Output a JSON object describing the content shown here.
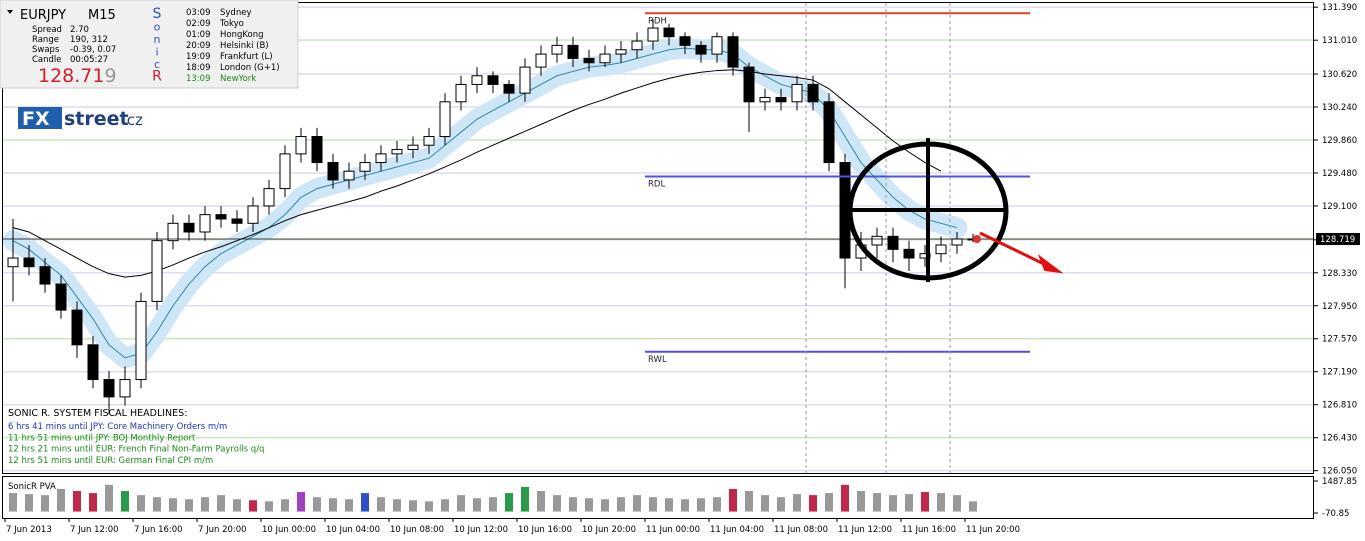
{
  "header": {
    "symbol": "EURJPY",
    "period": "M15",
    "spread_label": "Spread",
    "spread": "2.70",
    "range_label": "Range",
    "range": "190, 312",
    "swaps_label": "Swaps",
    "swaps": "-0.39, 0.07",
    "candle_label": "Candle",
    "candle": "00:05:27",
    "bid": "128.71",
    "bid_last": "9",
    "sonic": [
      "S",
      "o",
      "n",
      "i",
      "c",
      "R"
    ]
  },
  "clocks": [
    {
      "time": "03:09",
      "city": "Sydney"
    },
    {
      "time": "02:09",
      "city": "Tokyo"
    },
    {
      "time": "01:09",
      "city": "HongKong"
    },
    {
      "time": "20:09",
      "city": "Helsinki  (B)"
    },
    {
      "time": "19:09",
      "city": "Frankfurt  (L)"
    },
    {
      "time": "18:09",
      "city": "London  (G+1)"
    },
    {
      "time": "13:09",
      "city": "NewYork"
    }
  ],
  "logo": {
    "fx": "FX",
    "street": "street",
    "tld": ".cz"
  },
  "headlines": {
    "title": "SONIC R. SYSTEM FISCAL HEADLINES:",
    "items": [
      "6 hrs 41 mins until JPY: Core Machinery Orders m/m",
      "11 hrs 51 mins until JPY: BOJ Monthly Report",
      "12 hrs 21 mins until EUR: French Final Non-Farm Payrolls q/q",
      "12 hrs 51 mins until EUR: German Final CPI m/m"
    ]
  },
  "chart_data": {
    "type": "candlestick",
    "categories": [
      "7 Jun 2013",
      null,
      null,
      null,
      "7 Jun 12:00",
      null,
      null,
      null,
      "7 Jun 16:00",
      null,
      null,
      null,
      "7 Jun 20:00",
      null,
      null,
      null,
      "10 Jun 00:00",
      null,
      null,
      null,
      "10 Jun 04:00",
      null,
      null,
      null,
      "10 Jun 08:00",
      null,
      null,
      null,
      "10 Jun 12:00",
      null,
      null,
      null,
      "10 Jun 16:00",
      null,
      null,
      null,
      "10 Jun 20:00",
      null,
      null,
      null,
      "11 Jun 00:00",
      null,
      null,
      null,
      "11 Jun 04:00",
      null,
      null,
      null,
      "11 Jun 08:00",
      null,
      null,
      null,
      "11 Jun 12:00",
      null,
      null,
      null,
      "11 Jun 16:00",
      null,
      null,
      null,
      "11 Jun 20:00"
    ],
    "open": [
      128.4,
      128.5,
      128.4,
      128.2,
      127.9,
      127.5,
      127.1,
      126.9,
      127.1,
      128.0,
      128.7,
      128.9,
      128.8,
      129.0,
      128.95,
      128.9,
      129.1,
      129.3,
      129.7,
      129.9,
      129.6,
      129.4,
      129.5,
      129.6,
      129.7,
      129.75,
      129.8,
      129.9,
      130.3,
      130.5,
      130.6,
      130.5,
      130.4,
      130.7,
      130.85,
      130.95,
      130.8,
      130.75,
      130.85,
      130.9,
      131.0,
      131.15,
      131.05,
      130.95,
      130.85,
      131.05,
      130.7,
      130.3,
      130.35,
      130.3,
      130.5,
      130.3,
      129.6,
      128.5,
      128.65,
      128.75,
      128.6,
      128.5,
      128.55,
      128.65,
      128.72
    ],
    "high": [
      128.95,
      128.65,
      128.5,
      128.3,
      128.0,
      127.6,
      127.2,
      127.25,
      128.1,
      128.8,
      129.0,
      129.0,
      129.1,
      129.1,
      129.05,
      129.2,
      129.4,
      129.8,
      130.0,
      130.0,
      129.7,
      129.6,
      129.7,
      129.8,
      129.85,
      129.9,
      130.0,
      130.4,
      130.6,
      130.7,
      130.65,
      130.55,
      130.8,
      130.95,
      131.05,
      131.05,
      130.9,
      130.95,
      131.0,
      131.1,
      131.25,
      131.2,
      131.1,
      131.0,
      131.1,
      131.1,
      130.75,
      130.45,
      130.45,
      130.6,
      130.6,
      130.4,
      129.7,
      128.8,
      128.85,
      128.85,
      128.7,
      128.65,
      128.75,
      128.8,
      128.78
    ],
    "low": [
      128.0,
      128.3,
      128.1,
      127.8,
      127.35,
      127.0,
      126.7,
      126.8,
      127.0,
      127.9,
      128.6,
      128.7,
      128.7,
      128.85,
      128.8,
      128.8,
      129.0,
      129.2,
      129.6,
      129.5,
      129.3,
      129.3,
      129.4,
      129.5,
      129.6,
      129.65,
      129.7,
      129.8,
      130.2,
      130.4,
      130.4,
      130.3,
      130.3,
      130.6,
      130.75,
      130.7,
      130.65,
      130.7,
      130.75,
      130.8,
      130.9,
      130.95,
      130.85,
      130.75,
      130.75,
      130.6,
      129.95,
      130.2,
      130.2,
      130.2,
      130.2,
      129.5,
      128.15,
      128.35,
      128.5,
      128.45,
      128.35,
      128.4,
      128.45,
      128.55,
      128.68
    ],
    "close": [
      128.5,
      128.4,
      128.2,
      127.9,
      127.5,
      127.1,
      126.9,
      127.1,
      128.0,
      128.7,
      128.9,
      128.8,
      129.0,
      128.95,
      128.9,
      129.1,
      129.3,
      129.7,
      129.9,
      129.6,
      129.4,
      129.5,
      129.6,
      129.7,
      129.75,
      129.8,
      129.9,
      130.3,
      130.5,
      130.6,
      130.5,
      130.4,
      130.7,
      130.85,
      130.95,
      130.8,
      130.75,
      130.85,
      130.9,
      131.0,
      131.15,
      131.05,
      130.95,
      130.85,
      131.05,
      130.7,
      130.3,
      130.35,
      130.3,
      130.5,
      130.3,
      129.6,
      128.5,
      128.65,
      128.75,
      128.6,
      128.5,
      128.55,
      128.65,
      128.72,
      128.719
    ],
    "series": [
      {
        "color": "#2a8aa8",
        "band_color": "#cfe6f7",
        "band": 0.12,
        "values": [
          128.7,
          128.6,
          128.45,
          128.3,
          128.05,
          127.8,
          127.5,
          127.35,
          127.4,
          127.65,
          127.95,
          128.2,
          128.4,
          128.55,
          128.65,
          128.75,
          128.85,
          129.0,
          129.2,
          129.3,
          129.35,
          129.4,
          129.45,
          129.5,
          129.55,
          129.6,
          129.65,
          129.8,
          129.95,
          130.1,
          130.2,
          130.3,
          130.4,
          130.5,
          130.6,
          130.65,
          130.7,
          130.72,
          130.75,
          130.8,
          130.85,
          130.9,
          130.92,
          130.9,
          130.9,
          130.85,
          130.7,
          130.6,
          130.5,
          130.45,
          130.4,
          130.2,
          129.9,
          129.6,
          129.4,
          129.2,
          129.05,
          128.95,
          128.9,
          128.85,
          null
        ]
      },
      {
        "color": "#000000",
        "values": [
          128.85,
          128.8,
          128.7,
          128.6,
          128.5,
          128.4,
          128.32,
          128.28,
          128.3,
          128.35,
          128.42,
          128.5,
          128.57,
          128.63,
          128.7,
          128.77,
          128.85,
          128.93,
          129.0,
          129.05,
          129.1,
          129.15,
          129.2,
          129.27,
          129.33,
          129.4,
          129.47,
          129.55,
          129.63,
          129.72,
          129.8,
          129.88,
          129.96,
          130.04,
          130.12,
          130.2,
          130.27,
          130.33,
          130.4,
          130.46,
          130.52,
          130.57,
          130.61,
          130.64,
          130.66,
          130.67,
          130.65,
          130.62,
          130.6,
          130.58,
          130.55,
          130.45,
          130.3,
          130.15,
          130.0,
          129.85,
          129.72,
          129.6,
          129.5,
          null,
          null
        ]
      }
    ],
    "levels": [
      {
        "label": "RDH",
        "value": 131.32,
        "color": "#e0402a"
      },
      {
        "label": "RDL",
        "value": 129.44,
        "color": "#5050d8"
      },
      {
        "label": "RWL",
        "value": 127.42,
        "color": "#5050d8"
      }
    ],
    "current": {
      "value": 128.719,
      "label": "128.719"
    },
    "ylim": [
      126.0,
      131.45
    ],
    "yticks": [
      {
        "value": 131.39,
        "label": "131.390"
      },
      {
        "value": 131.01,
        "label": "131.010"
      },
      {
        "value": 130.62,
        "label": "130.620"
      },
      {
        "value": 130.24,
        "label": "130.240"
      },
      {
        "value": 129.86,
        "label": "129.860"
      },
      {
        "value": 129.48,
        "label": "129.480"
      },
      {
        "value": 129.1,
        "label": "129.100"
      },
      {
        "value": 128.71,
        "label": "128.710"
      },
      {
        "value": 128.33,
        "label": "128.330"
      },
      {
        "value": 127.95,
        "label": "127.950"
      },
      {
        "value": 127.57,
        "label": "127.570"
      },
      {
        "value": 127.19,
        "label": "127.190"
      },
      {
        "value": 126.81,
        "label": "126.810"
      },
      {
        "value": 126.43,
        "label": "126.430"
      },
      {
        "value": 126.05,
        "label": "126.050"
      }
    ],
    "grid": true,
    "volume": {
      "title": "SonicR PVA",
      "ylim": [
        -70.85,
        1487.85
      ],
      "yticks": [
        1487.85,
        -70.85
      ],
      "values": [
        900,
        850,
        800,
        1100,
        1000,
        900,
        1300,
        1000,
        800,
        700,
        650,
        600,
        700,
        800,
        600,
        550,
        500,
        600,
        950,
        700,
        650,
        600,
        900,
        700,
        600,
        550,
        500,
        600,
        800,
        650,
        700,
        900,
        1200,
        1000,
        800,
        700,
        650,
        600,
        700,
        800,
        700,
        650,
        600,
        650,
        700,
        1100,
        1000,
        800,
        700,
        850,
        800,
        900,
        1300,
        1000,
        900,
        800,
        850,
        950,
        900,
        800,
        500
      ],
      "colors": [
        "#999",
        "#999",
        "#999",
        "#999",
        "#c0284a",
        "#c0284a",
        "#999",
        "#2a9a4a",
        "#999",
        "#999",
        "#999",
        "#999",
        "#999",
        "#999",
        "#999",
        "#c0284a",
        "#999",
        "#999",
        "#a040c0",
        "#999",
        "#999",
        "#999",
        "#3050c8",
        "#999",
        "#999",
        "#999",
        "#999",
        "#999",
        "#999",
        "#999",
        "#999",
        "#2a9a4a",
        "#2a9a4a",
        "#999",
        "#999",
        "#999",
        "#999",
        "#999",
        "#999",
        "#999",
        "#999",
        "#999",
        "#999",
        "#999",
        "#999",
        "#c0284a",
        "#999",
        "#999",
        "#999",
        "#999",
        "#c0284a",
        "#999",
        "#c0284a",
        "#999",
        "#999",
        "#999",
        "#999",
        "#c0284a",
        "#999",
        "#999",
        "#999"
      ]
    }
  }
}
